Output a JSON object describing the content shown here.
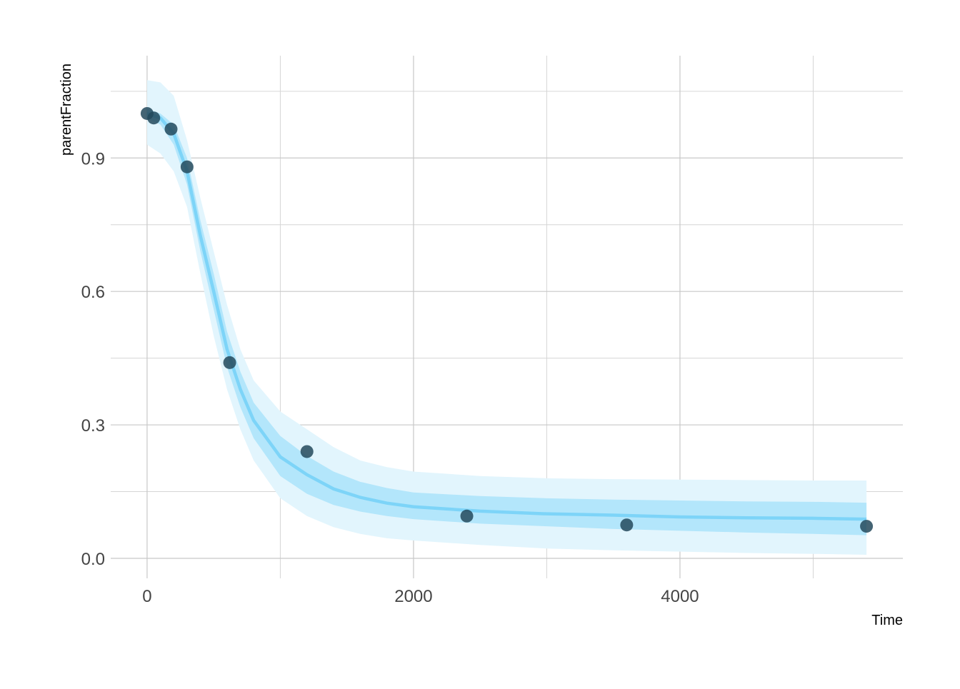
{
  "chart_data": {
    "type": "line",
    "x_label": "Time",
    "y_label": "parentFraction",
    "xlim": [
      -273,
      5673
    ],
    "ylim": [
      -0.045,
      1.13
    ],
    "xticks": [
      0,
      2000,
      4000
    ],
    "yticks": [
      {
        "value": 0,
        "label": "0.0"
      },
      0.3,
      0.6,
      0.9
    ],
    "x_minor_grid": [
      1000,
      3000,
      5000
    ],
    "y_minor_grid": [
      0.15,
      0.45,
      0.75,
      1.05
    ],
    "grid": true,
    "x": [
      0,
      100,
      200,
      300,
      400,
      500,
      600,
      700,
      800,
      1000,
      1200,
      1400,
      1600,
      1800,
      2000,
      2500,
      3000,
      3500,
      4000,
      4500,
      5000,
      5400
    ],
    "bands": [
      {
        "color": "#e2f5fd",
        "lower": [
          0.93,
          0.91,
          0.87,
          0.79,
          0.64,
          0.5,
          0.38,
          0.29,
          0.22,
          0.135,
          0.095,
          0.07,
          0.055,
          0.045,
          0.04,
          0.03,
          0.022,
          0.018,
          0.015,
          0.012,
          0.01,
          0.008
        ],
        "upper": [
          1.075,
          1.07,
          1.04,
          0.94,
          0.81,
          0.69,
          0.57,
          0.47,
          0.4,
          0.33,
          0.29,
          0.25,
          0.22,
          0.205,
          0.195,
          0.185,
          0.18,
          0.178,
          0.177,
          0.176,
          0.175,
          0.175
        ]
      },
      {
        "color": "#b3e6fb",
        "lower": [
          0.99,
          0.975,
          0.93,
          0.84,
          0.69,
          0.56,
          0.43,
          0.34,
          0.27,
          0.185,
          0.145,
          0.12,
          0.105,
          0.095,
          0.088,
          0.078,
          0.072,
          0.066,
          0.062,
          0.058,
          0.055,
          0.052
        ],
        "upper": [
          1.01,
          1.0,
          0.975,
          0.9,
          0.76,
          0.64,
          0.51,
          0.42,
          0.35,
          0.275,
          0.23,
          0.195,
          0.172,
          0.158,
          0.148,
          0.14,
          0.135,
          0.132,
          0.13,
          0.128,
          0.127,
          0.125
        ]
      }
    ],
    "series": [
      {
        "color": "#7dd4f8",
        "values": [
          1.0,
          0.99,
          0.955,
          0.87,
          0.725,
          0.6,
          0.47,
          0.38,
          0.31,
          0.228,
          0.188,
          0.156,
          0.137,
          0.124,
          0.116,
          0.106,
          0.1,
          0.097,
          0.093,
          0.091,
          0.09,
          0.088
        ]
      }
    ],
    "points": {
      "color": "#23495c",
      "x": [
        0,
        50,
        180,
        300,
        620,
        1200,
        2400,
        3600,
        5400
      ],
      "values": [
        1.0,
        0.99,
        0.965,
        0.88,
        0.44,
        0.24,
        0.095,
        0.075,
        0.072
      ]
    }
  }
}
